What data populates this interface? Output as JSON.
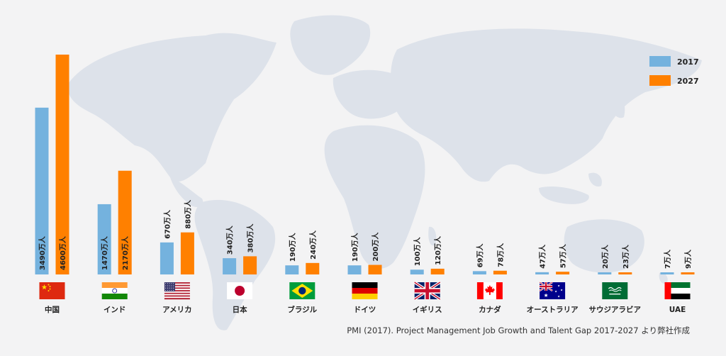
{
  "colors": {
    "background": "#f3f3f4",
    "map": "#dde2ea",
    "series_2017": "#74b2de",
    "series_2027": "#ff8000",
    "text": "#222222",
    "source_text": "#333333"
  },
  "legend": {
    "items": [
      {
        "label": "2017",
        "color": "#74b2de"
      },
      {
        "label": "2027",
        "color": "#ff8000"
      }
    ]
  },
  "source": "PMI (2017). Project Management Job Growth and Talent Gap 2017-2027 より弊社作成",
  "chart_data": {
    "type": "bar",
    "title": "",
    "xlabel": "",
    "ylabel": "",
    "ylim": [
      0,
      4600
    ],
    "grid": false,
    "legend_position": "top-right",
    "unit": "万人",
    "categories": [
      "中国",
      "インド",
      "アメリカ",
      "日本",
      "ブラジル",
      "ドイツ",
      "イギリス",
      "カナダ",
      "オーストラリア",
      "サウジアラビア",
      "UAE"
    ],
    "flags": [
      "china-flag-icon",
      "india-flag-icon",
      "usa-flag-icon",
      "japan-flag-icon",
      "brazil-flag-icon",
      "germany-flag-icon",
      "uk-flag-icon",
      "canada-flag-icon",
      "australia-flag-icon",
      "saudi-arabia-flag-icon",
      "uae-flag-icon"
    ],
    "series": [
      {
        "name": "2017",
        "color": "#74b2de",
        "values": [
          3490,
          1470,
          670,
          340,
          190,
          190,
          100,
          69,
          47,
          20,
          7
        ],
        "labels": [
          "3490万人",
          "1470万人",
          "670万人",
          "340万人",
          "190万人",
          "190万人",
          "100万人",
          "69万人",
          "47万人",
          "20万人",
          "7万人"
        ]
      },
      {
        "name": "2027",
        "color": "#ff8000",
        "values": [
          4600,
          2170,
          880,
          380,
          240,
          200,
          120,
          78,
          57,
          23,
          9
        ],
        "labels": [
          "4600万人",
          "2170万人",
          "880万人",
          "380万人",
          "240万人",
          "200万人",
          "120万人",
          "78万人",
          "57万人",
          "23万人",
          "9万人"
        ]
      }
    ]
  }
}
